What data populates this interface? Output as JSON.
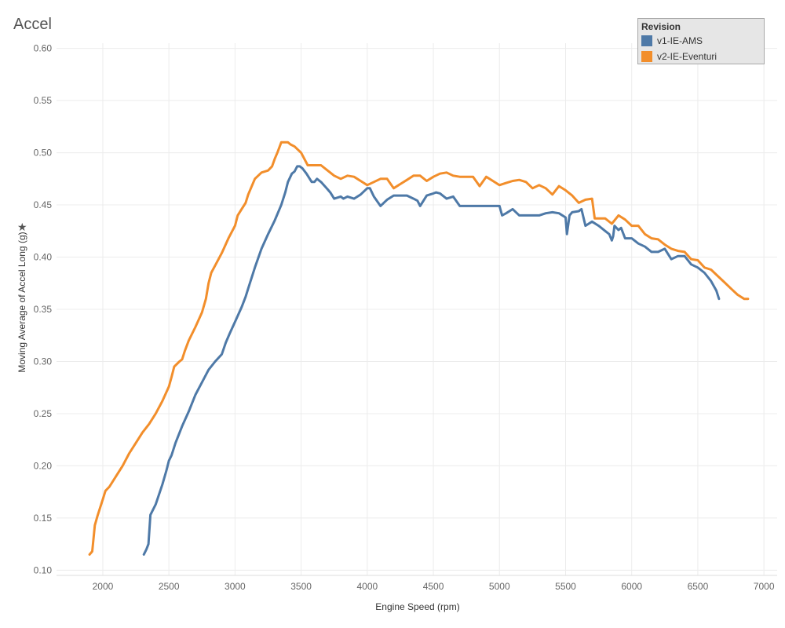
{
  "title": "Accel",
  "legend": {
    "title": "Revision",
    "items": [
      {
        "label": "v1-IE-AMS",
        "color": "#4e79a7"
      },
      {
        "label": "v2-IE-Eventuri",
        "color": "#f28e2b"
      }
    ]
  },
  "chart_data": {
    "type": "line",
    "xlabel": "Engine Speed (rpm)",
    "ylabel": "Moving Average of Accel Long (g)",
    "xlim": [
      1650,
      7100
    ],
    "ylim": [
      0.095,
      0.605
    ],
    "xticks": [
      2000,
      2500,
      3000,
      3500,
      4000,
      4500,
      5000,
      5500,
      6000,
      6500,
      7000
    ],
    "yticks": [
      0.1,
      0.15,
      0.2,
      0.25,
      0.3,
      0.35,
      0.4,
      0.45,
      0.5,
      0.55,
      0.6
    ],
    "grid": true,
    "legend_position": "top-right",
    "series": [
      {
        "name": "v1-IE-AMS",
        "color": "#4e79a7",
        "x": [
          2310,
          2330,
          2345,
          2360,
          2400,
          2450,
          2480,
          2500,
          2520,
          2550,
          2600,
          2650,
          2700,
          2750,
          2800,
          2850,
          2900,
          2930,
          2960,
          3000,
          3050,
          3080,
          3100,
          3150,
          3200,
          3250,
          3300,
          3350,
          3380,
          3400,
          3430,
          3450,
          3470,
          3490,
          3510,
          3540,
          3580,
          3600,
          3620,
          3650,
          3700,
          3720,
          3750,
          3800,
          3820,
          3850,
          3900,
          3950,
          4000,
          4020,
          4050,
          4100,
          4150,
          4200,
          4250,
          4300,
          4350,
          4380,
          4400,
          4450,
          4500,
          4520,
          4550,
          4600,
          4650,
          4700,
          4750,
          4800,
          4850,
          4900,
          4950,
          5000,
          5020,
          5050,
          5100,
          5150,
          5200,
          5250,
          5300,
          5350,
          5400,
          5450,
          5500,
          5510,
          5530,
          5550,
          5600,
          5620,
          5650,
          5700,
          5750,
          5800,
          5830,
          5850,
          5860,
          5870,
          5900,
          5920,
          5950,
          6000,
          6050,
          6100,
          6150,
          6200,
          6250,
          6300,
          6350,
          6400,
          6450,
          6500,
          6550,
          6600,
          6640,
          6660
        ],
        "y": [
          0.115,
          0.12,
          0.125,
          0.153,
          0.163,
          0.182,
          0.195,
          0.205,
          0.21,
          0.222,
          0.238,
          0.252,
          0.268,
          0.28,
          0.292,
          0.3,
          0.307,
          0.318,
          0.327,
          0.338,
          0.352,
          0.362,
          0.37,
          0.39,
          0.408,
          0.422,
          0.435,
          0.45,
          0.462,
          0.472,
          0.48,
          0.482,
          0.487,
          0.487,
          0.485,
          0.48,
          0.472,
          0.472,
          0.475,
          0.472,
          0.465,
          0.462,
          0.456,
          0.458,
          0.456,
          0.458,
          0.456,
          0.46,
          0.466,
          0.466,
          0.458,
          0.449,
          0.455,
          0.459,
          0.459,
          0.459,
          0.456,
          0.454,
          0.449,
          0.459,
          0.461,
          0.462,
          0.461,
          0.456,
          0.458,
          0.449,
          0.449,
          0.449,
          0.449,
          0.449,
          0.449,
          0.449,
          0.44,
          0.442,
          0.446,
          0.44,
          0.44,
          0.44,
          0.44,
          0.442,
          0.443,
          0.442,
          0.438,
          0.422,
          0.44,
          0.443,
          0.444,
          0.446,
          0.43,
          0.434,
          0.43,
          0.425,
          0.422,
          0.416,
          0.42,
          0.43,
          0.426,
          0.428,
          0.418,
          0.418,
          0.413,
          0.41,
          0.405,
          0.405,
          0.408,
          0.398,
          0.401,
          0.401,
          0.393,
          0.39,
          0.385,
          0.377,
          0.368,
          0.36
        ]
      },
      {
        "name": "v2-IE-Eventuri",
        "color": "#f28e2b",
        "x": [
          1900,
          1920,
          1940,
          1960,
          1980,
          2000,
          2020,
          2050,
          2100,
          2150,
          2200,
          2250,
          2300,
          2350,
          2400,
          2450,
          2500,
          2520,
          2540,
          2580,
          2600,
          2620,
          2650,
          2700,
          2750,
          2780,
          2800,
          2820,
          2850,
          2900,
          2950,
          3000,
          3020,
          3050,
          3080,
          3100,
          3150,
          3200,
          3250,
          3280,
          3300,
          3320,
          3350,
          3380,
          3400,
          3420,
          3450,
          3500,
          3550,
          3600,
          3650,
          3700,
          3750,
          3800,
          3850,
          3900,
          3950,
          4000,
          4050,
          4100,
          4150,
          4200,
          4250,
          4300,
          4350,
          4400,
          4450,
          4500,
          4550,
          4600,
          4650,
          4700,
          4750,
          4800,
          4850,
          4900,
          4950,
          5000,
          5050,
          5100,
          5150,
          5200,
          5250,
          5300,
          5350,
          5400,
          5450,
          5500,
          5550,
          5600,
          5650,
          5700,
          5720,
          5750,
          5800,
          5850,
          5900,
          5950,
          6000,
          6050,
          6100,
          6150,
          6200,
          6250,
          6300,
          6350,
          6400,
          6450,
          6500,
          6550,
          6600,
          6650,
          6700,
          6750,
          6800,
          6850,
          6880
        ],
        "y": [
          0.115,
          0.118,
          0.143,
          0.152,
          0.16,
          0.168,
          0.176,
          0.18,
          0.19,
          0.2,
          0.212,
          0.222,
          0.232,
          0.24,
          0.25,
          0.262,
          0.276,
          0.285,
          0.295,
          0.3,
          0.302,
          0.31,
          0.32,
          0.333,
          0.347,
          0.36,
          0.375,
          0.385,
          0.392,
          0.404,
          0.418,
          0.43,
          0.44,
          0.446,
          0.452,
          0.46,
          0.475,
          0.481,
          0.483,
          0.487,
          0.494,
          0.5,
          0.51,
          0.51,
          0.51,
          0.508,
          0.506,
          0.5,
          0.488,
          0.488,
          0.488,
          0.483,
          0.478,
          0.475,
          0.478,
          0.477,
          0.473,
          0.469,
          0.472,
          0.475,
          0.475,
          0.466,
          0.47,
          0.474,
          0.478,
          0.478,
          0.473,
          0.477,
          0.48,
          0.481,
          0.478,
          0.477,
          0.477,
          0.477,
          0.468,
          0.477,
          0.473,
          0.469,
          0.471,
          0.473,
          0.474,
          0.472,
          0.466,
          0.469,
          0.466,
          0.46,
          0.468,
          0.464,
          0.459,
          0.452,
          0.455,
          0.456,
          0.437,
          0.437,
          0.437,
          0.432,
          0.44,
          0.436,
          0.43,
          0.43,
          0.422,
          0.418,
          0.417,
          0.412,
          0.408,
          0.406,
          0.405,
          0.398,
          0.397,
          0.39,
          0.388,
          0.382,
          0.376,
          0.37,
          0.364,
          0.36,
          0.36
        ]
      }
    ]
  }
}
